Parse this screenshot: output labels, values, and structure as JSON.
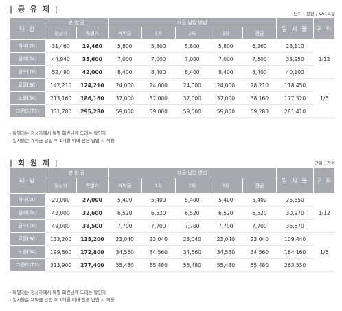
{
  "section1": {
    "title": "| 공 유 제 |",
    "unit": "단위 : 천원 / VAT포함",
    "headers": {
      "type": "타 입",
      "sale_price": "분 양 금",
      "regular": "정상가",
      "special": "특별가",
      "payment_plan": "대금 납입 방법",
      "contract": "계약금",
      "first": "1차",
      "second": "2차",
      "third": "3차",
      "balance": "잔금",
      "lump_sum": "일 시 불",
      "account": "구 좌"
    },
    "rows": [
      {
        "type": "하나(20)",
        "regular": "31,460",
        "special": "29,460",
        "contract": "5,800",
        "p1": "5,800",
        "p2": "5,800",
        "p3": "5,800",
        "balance": "6,260",
        "lump": "28,110"
      },
      {
        "type": "실버(24)",
        "regular": "44,940",
        "special": "35,600",
        "contract": "7,000",
        "p1": "7,000",
        "p2": "7,000",
        "p3": "7,000",
        "balance": "7,600",
        "lump": "33,950"
      },
      {
        "type": "골드(28)",
        "regular": "52,490",
        "special": "42,000",
        "contract": "8,400",
        "p1": "8,400",
        "p2": "8,400",
        "p3": "8,400",
        "balance": "8,400",
        "lump": "40,100"
      },
      {
        "type": "로얄(36)",
        "regular": "142,210",
        "special": "124,210",
        "contract": "24,000",
        "p1": "24,000",
        "p2": "24,000",
        "p3": "24,000",
        "balance": "28,210",
        "lump": "118,450"
      },
      {
        "type": "노블(54)",
        "regular": "213,160",
        "special": "186,160",
        "contract": "37,000",
        "p1": "37,000",
        "p2": "37,000",
        "p3": "37,000",
        "balance": "38,160",
        "lump": "177,520"
      },
      {
        "type": "그랜드(73)",
        "regular": "331,780",
        "special": "295,280",
        "contract": "59,000",
        "p1": "59,000",
        "p2": "59,000",
        "p3": "59,000",
        "balance": "59,280",
        "lump": "281,410"
      }
    ],
    "account_groups": [
      "1/12",
      "1/6"
    ],
    "notes": [
      "- 특별가는 정상가에서 특별 회원님께 드리는 할인가",
      "- 일시불은 계약금 납입 후 1개월 이내 잔금 납입 시 적용"
    ]
  },
  "section2": {
    "title": "| 회 원 제 |",
    "unit": "단위 : 천원",
    "headers": {
      "type": "타 입",
      "sale_price": "분 양 금",
      "regular": "정상가",
      "special": "특별가",
      "payment_plan": "대금 납입 방법",
      "contract": "계약금",
      "first": "1차",
      "second": "2차",
      "third": "3차",
      "balance": "잔금",
      "lump_sum": "일 시 불",
      "account": "구 좌"
    },
    "rows": [
      {
        "type": "하나(20)",
        "regular": "29,000",
        "special": "27,000",
        "contract": "5,400",
        "p1": "5,400",
        "p2": "5,400",
        "p3": "5,400",
        "balance": "5,400",
        "lump": "25,650"
      },
      {
        "type": "실버(24)",
        "regular": "42,000",
        "special": "32,600",
        "contract": "6,520",
        "p1": "6,520",
        "p2": "6,520",
        "p3": "6,520",
        "balance": "6,520",
        "lump": "30,970"
      },
      {
        "type": "골드(28)",
        "regular": "49,000",
        "special": "38,500",
        "contract": "7,700",
        "p1": "7,700",
        "p2": "7,700",
        "p3": "7,700",
        "balance": "7,700",
        "lump": "36,570"
      },
      {
        "type": "로얄(36)",
        "regular": "133,200",
        "special": "115,200",
        "contract": "23,040",
        "p1": "23,040",
        "p2": "23,040",
        "p3": "23,040",
        "balance": "23,040",
        "lump": "109,440"
      },
      {
        "type": "노블(54)",
        "regular": "199,800",
        "special": "172,800",
        "contract": "34,560",
        "p1": "34,560",
        "p2": "34,560",
        "p3": "34,560",
        "balance": "34,560",
        "lump": "164,160"
      },
      {
        "type": "그랜드(73)",
        "regular": "313,900",
        "special": "277,400",
        "contract": "55,480",
        "p1": "55,480",
        "p2": "55,480",
        "p3": "55,480",
        "balance": "55,480",
        "lump": "263,530"
      }
    ],
    "account_groups": [
      "1/12",
      "1/6"
    ],
    "notes": [
      "- 특별가는 정상가에서 특별 회원님께 드리는 할인가",
      "- 일시불은 계약금 납입 후 1개월 이내 잔금 납입 시 적용"
    ]
  }
}
